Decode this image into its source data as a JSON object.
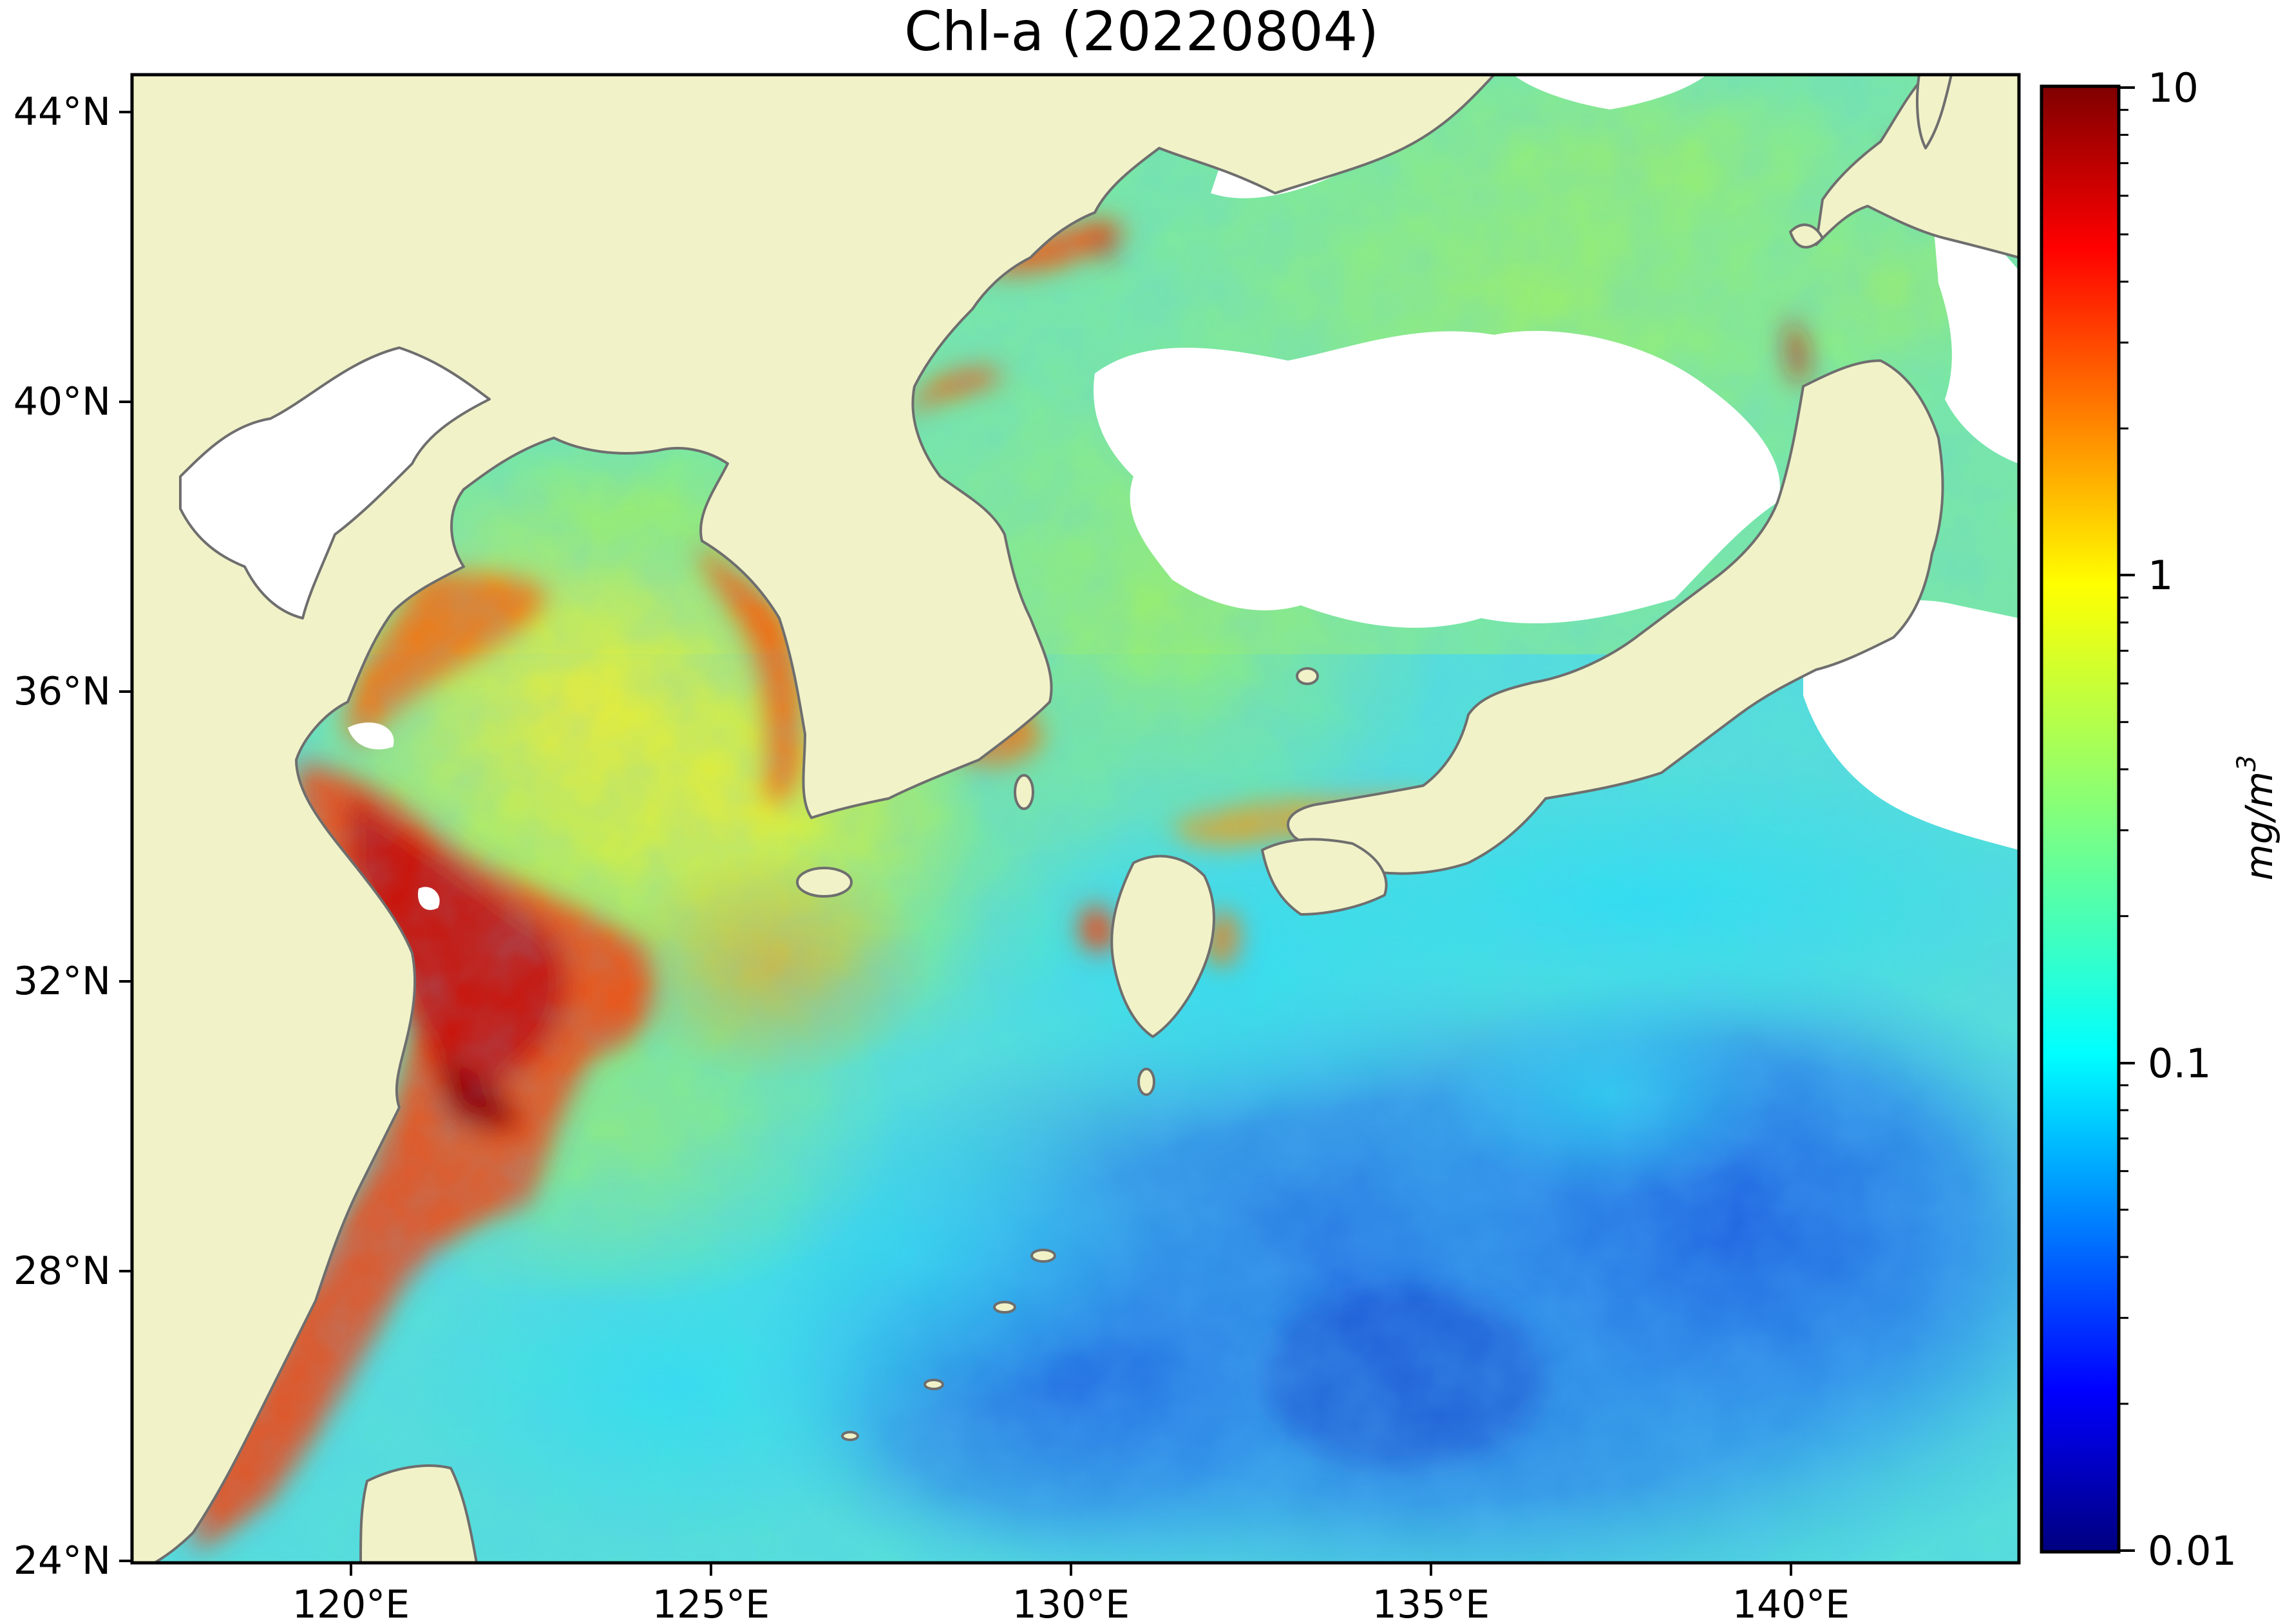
{
  "title": "Chl-a (20220804)",
  "map": {
    "lon_ticks": [
      "120°E",
      "125°E",
      "130°E",
      "135°E",
      "140°E"
    ],
    "lat_ticks": [
      "44°N",
      "40°N",
      "36°N",
      "32°N",
      "28°N",
      "24°N"
    ],
    "land_color": "#f1f2c8",
    "cloud_color": "#ffffff",
    "coastline_color": "#6e6e6e"
  },
  "colorbar": {
    "labels": [
      "10",
      "1",
      "0.1",
      "0.01"
    ],
    "unit_base": "mg/m",
    "unit_exp": "3",
    "scale": "log",
    "range": [
      0.01,
      10
    ],
    "colormap": "jet"
  }
}
